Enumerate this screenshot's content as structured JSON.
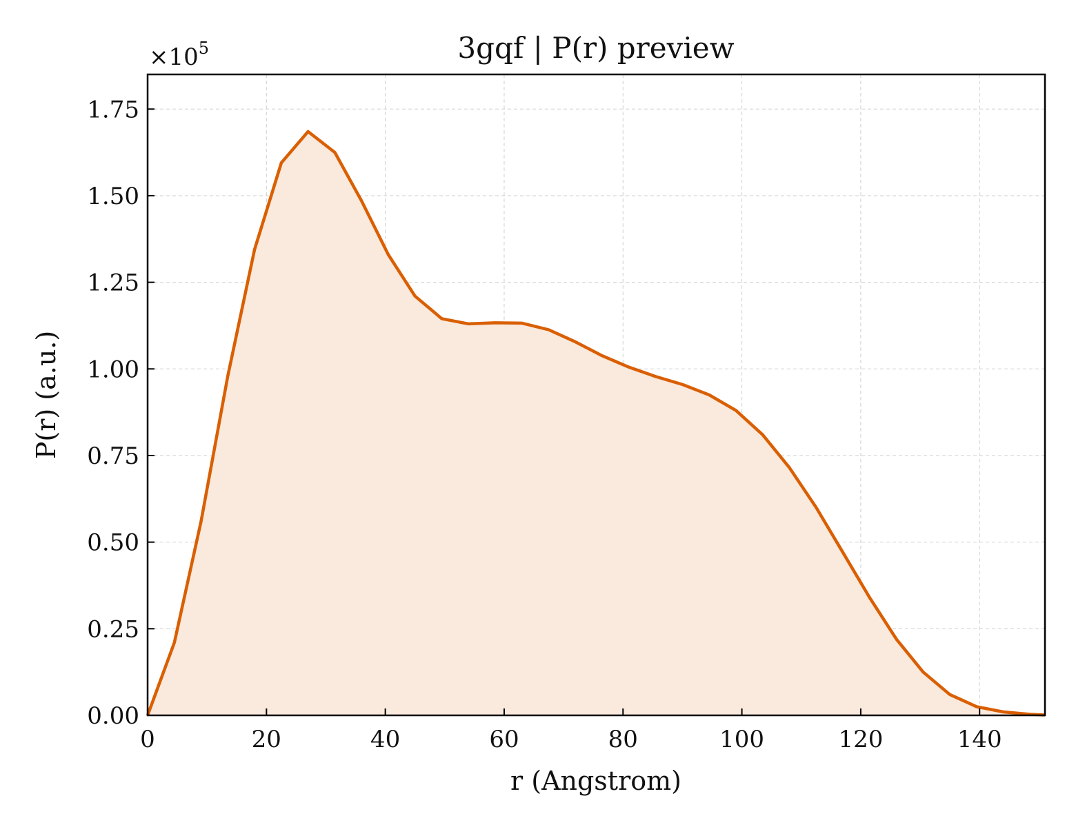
{
  "chart_data": {
    "type": "area",
    "title": "3gqf | P(r) preview",
    "xlabel": "r (Angstrom)",
    "ylabel": "P(r) (a.u.)",
    "y_multiplier_label": "×10",
    "y_multiplier_exponent": "5",
    "xlim": [
      0,
      151
    ],
    "ylim": [
      0,
      1.85
    ],
    "y_scale": 100000,
    "xticks": [
      0,
      20,
      40,
      60,
      80,
      100,
      120,
      140
    ],
    "xtick_labels": [
      "0",
      "20",
      "40",
      "60",
      "80",
      "100",
      "120",
      "140"
    ],
    "yticks": [
      0,
      0.25,
      0.5,
      0.75,
      1.0,
      1.25,
      1.5,
      1.75
    ],
    "ytick_labels": [
      "0.00",
      "0.25",
      "0.50",
      "0.75",
      "1.00",
      "1.25",
      "1.50",
      "1.75"
    ],
    "grid": true,
    "series": [
      {
        "color": "#d95f02",
        "fill_color": "#fae9dd",
        "x": [
          0,
          4.5,
          9,
          13.5,
          18,
          22.5,
          27,
          31.5,
          36,
          40.5,
          45,
          49.5,
          54,
          58.5,
          63,
          67.5,
          72,
          76.5,
          81,
          85.5,
          90,
          94.5,
          99,
          103.5,
          108,
          112.5,
          117,
          121.5,
          126,
          130.5,
          135,
          139.5,
          144,
          148.5,
          151
        ],
        "y": [
          0.0,
          0.21,
          0.56,
          0.98,
          1.345,
          1.595,
          1.685,
          1.625,
          1.485,
          1.33,
          1.21,
          1.145,
          1.13,
          1.133,
          1.132,
          1.113,
          1.078,
          1.038,
          1.005,
          0.978,
          0.955,
          0.925,
          0.88,
          0.81,
          0.715,
          0.6,
          0.47,
          0.34,
          0.22,
          0.125,
          0.06,
          0.025,
          0.01,
          0.003,
          0.001
        ]
      }
    ]
  }
}
